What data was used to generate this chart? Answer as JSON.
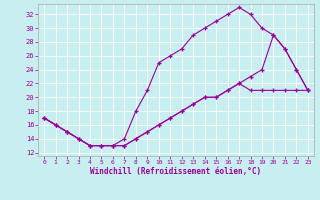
{
  "xlabel": "Windchill (Refroidissement éolien,°C)",
  "bg_color": "#c8eef0",
  "line_color": "#990099",
  "grid_color": "#ffffff",
  "xlim": [
    -0.5,
    23.5
  ],
  "ylim": [
    11.5,
    33.5
  ],
  "xticks": [
    0,
    1,
    2,
    3,
    4,
    5,
    6,
    7,
    8,
    9,
    10,
    11,
    12,
    13,
    14,
    15,
    16,
    17,
    18,
    19,
    20,
    21,
    22,
    23
  ],
  "yticks": [
    12,
    14,
    16,
    18,
    20,
    22,
    24,
    26,
    28,
    30,
    32
  ],
  "line1_x": [
    0,
    1,
    2,
    3,
    4,
    5,
    6,
    7,
    8,
    9,
    10,
    11,
    12,
    13,
    14,
    15,
    16,
    17,
    18,
    19,
    20,
    21,
    22,
    23
  ],
  "line1_y": [
    17,
    16,
    15,
    14,
    13,
    13,
    13,
    14,
    18,
    21,
    25,
    26,
    27,
    29,
    30,
    31,
    32,
    33,
    32,
    30,
    29,
    27,
    24,
    21
  ],
  "line2_x": [
    0,
    1,
    2,
    3,
    4,
    5,
    6,
    7,
    8,
    9,
    10,
    11,
    12,
    13,
    14,
    15,
    16,
    17,
    18,
    19,
    20,
    21,
    22,
    23
  ],
  "line2_y": [
    17,
    16,
    15,
    14,
    13,
    13,
    13,
    13,
    14,
    15,
    16,
    17,
    18,
    19,
    20,
    20,
    21,
    22,
    21,
    21,
    21,
    21,
    21,
    21
  ],
  "line3_x": [
    0,
    1,
    2,
    3,
    4,
    5,
    6,
    7,
    8,
    9,
    10,
    11,
    12,
    13,
    14,
    15,
    16,
    17,
    18,
    19,
    20,
    21,
    22,
    23
  ],
  "line3_y": [
    17,
    16,
    15,
    14,
    13,
    13,
    13,
    13,
    14,
    15,
    16,
    17,
    18,
    19,
    20,
    20,
    21,
    22,
    23,
    24,
    29,
    27,
    24,
    21
  ]
}
